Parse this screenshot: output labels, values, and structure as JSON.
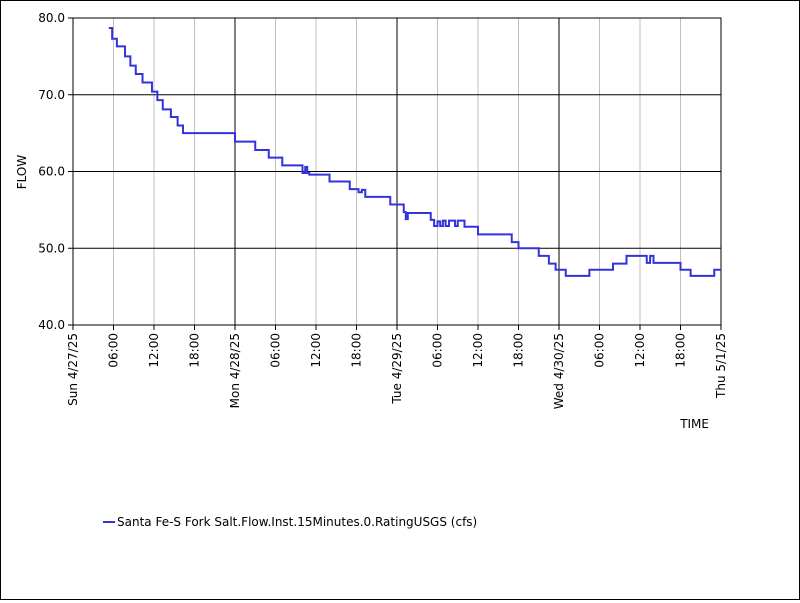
{
  "chart_data": {
    "type": "line",
    "ylabel": "FLOW",
    "xlabel": "TIME",
    "ylim": [
      40,
      80
    ],
    "xlim": [
      0,
      96
    ],
    "y_ticks": [
      {
        "value": 40,
        "label": "40.0"
      },
      {
        "value": 50,
        "label": "50.0"
      },
      {
        "value": 60,
        "label": "60.0"
      },
      {
        "value": 70,
        "label": "70.0"
      },
      {
        "value": 80,
        "label": "80.0"
      }
    ],
    "x_ticks": [
      {
        "value": 0,
        "label": "Sun 4/27/25",
        "major": true
      },
      {
        "value": 6,
        "label": "06:00",
        "major": false
      },
      {
        "value": 12,
        "label": "12:00",
        "major": false
      },
      {
        "value": 18,
        "label": "18:00",
        "major": false
      },
      {
        "value": 24,
        "label": "Mon 4/28/25",
        "major": true
      },
      {
        "value": 30,
        "label": "06:00",
        "major": false
      },
      {
        "value": 36,
        "label": "12:00",
        "major": false
      },
      {
        "value": 42,
        "label": "18:00",
        "major": false
      },
      {
        "value": 48,
        "label": "Tue 4/29/25",
        "major": true
      },
      {
        "value": 54,
        "label": "06:00",
        "major": false
      },
      {
        "value": 60,
        "label": "12:00",
        "major": false
      },
      {
        "value": 66,
        "label": "18:00",
        "major": false
      },
      {
        "value": 72,
        "label": "Wed 4/30/25",
        "major": true
      },
      {
        "value": 78,
        "label": "06:00",
        "major": false
      },
      {
        "value": 84,
        "label": "12:00",
        "major": false
      },
      {
        "value": 90,
        "label": "18:00",
        "major": false
      },
      {
        "value": 96,
        "label": "Thu 5/1/25",
        "major": true
      }
    ],
    "legend_position": "bottom-left",
    "series": [
      {
        "name": "Santa Fe-S Fork Salt.Flow.Inst.15Minutes.0.RatingUSGS (cfs)",
        "color": "#3333dd",
        "step": true,
        "x": [
          5.3,
          5.8,
          6.5,
          7.7,
          8.5,
          9.3,
          10.3,
          11.7,
          12.5,
          13.3,
          14.5,
          15.5,
          16.3,
          17.0,
          18.2,
          19.0,
          24.0,
          27.0,
          29.0,
          31.0,
          33.0,
          34.0,
          34.4,
          34.7,
          35.0,
          38.0,
          41.0,
          42.3,
          42.8,
          43.3,
          44.0,
          47.0,
          49.0,
          49.3,
          49.6,
          53.0,
          53.5,
          54.0,
          54.4,
          54.8,
          55.2,
          55.7,
          56.2,
          56.6,
          57.0,
          58.0,
          60.0,
          65.0,
          66.0,
          67.0,
          69.0,
          70.5,
          71.5,
          73.0,
          75.0,
          76.5,
          80.0,
          81.0,
          82.0,
          85.0,
          85.5,
          86.0,
          86.5,
          87.0,
          90.0,
          91.5,
          93.0,
          95.0
        ],
        "values": [
          78.7,
          77.3,
          76.3,
          75.0,
          73.8,
          72.7,
          71.6,
          70.4,
          69.3,
          68.1,
          67.1,
          66.0,
          65.0,
          65.0,
          65.0,
          65.0,
          63.9,
          62.8,
          61.8,
          60.8,
          60.8,
          59.8,
          60.6,
          59.8,
          59.6,
          58.7,
          57.7,
          57.3,
          57.6,
          56.7,
          56.7,
          55.7,
          54.7,
          53.8,
          54.6,
          53.7,
          52.9,
          53.5,
          52.9,
          53.6,
          52.9,
          53.6,
          53.6,
          52.9,
          53.6,
          52.8,
          51.8,
          50.8,
          50.0,
          50.0,
          49.0,
          48.0,
          47.2,
          46.4,
          46.4,
          47.2,
          48.0,
          48.0,
          49.0,
          48.1,
          49.0,
          48.1,
          48.1,
          48.1,
          47.2,
          46.4,
          46.4,
          47.2
        ]
      }
    ]
  }
}
